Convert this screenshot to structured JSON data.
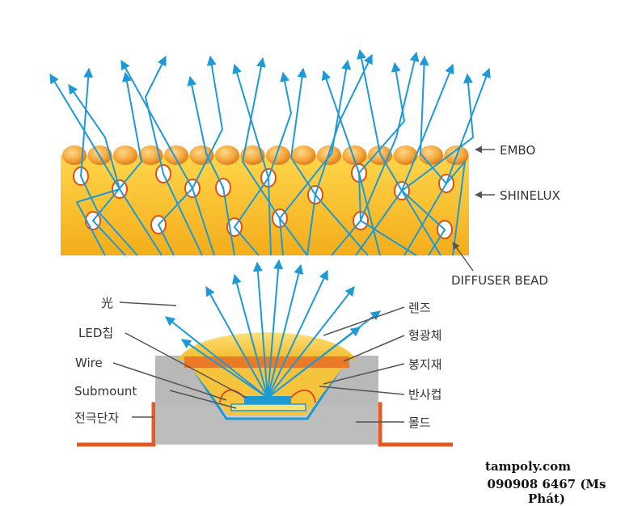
{
  "labels": {
    "embo": "EMBO",
    "shinelux": "SHINELUX",
    "diffuser_bead": "DIFFUSER BEAD",
    "light": "光",
    "led_chip": "LED칩",
    "wire": "Wire",
    "submount": "Submount",
    "electrode": "전극단자",
    "lens": "렌즈",
    "phosphor": "형광체",
    "encapsulant": "봉지재",
    "reflector_cup": "반사컵",
    "mold": "몰드"
  },
  "watermark": {
    "site": "tampoly.com",
    "phone": "090908 6467 (Ms Phát)"
  },
  "colors": {
    "ray": "#1d9ad6",
    "shinelux_top": "#ffcd3c",
    "shinelux_bottom": "#f6b01c",
    "bead_outline": "#d8521a",
    "electrode": "#e35a24",
    "mold": "#b9b9b9",
    "lens": "#f7c83a",
    "phosphor_band": "#ea7a26"
  }
}
